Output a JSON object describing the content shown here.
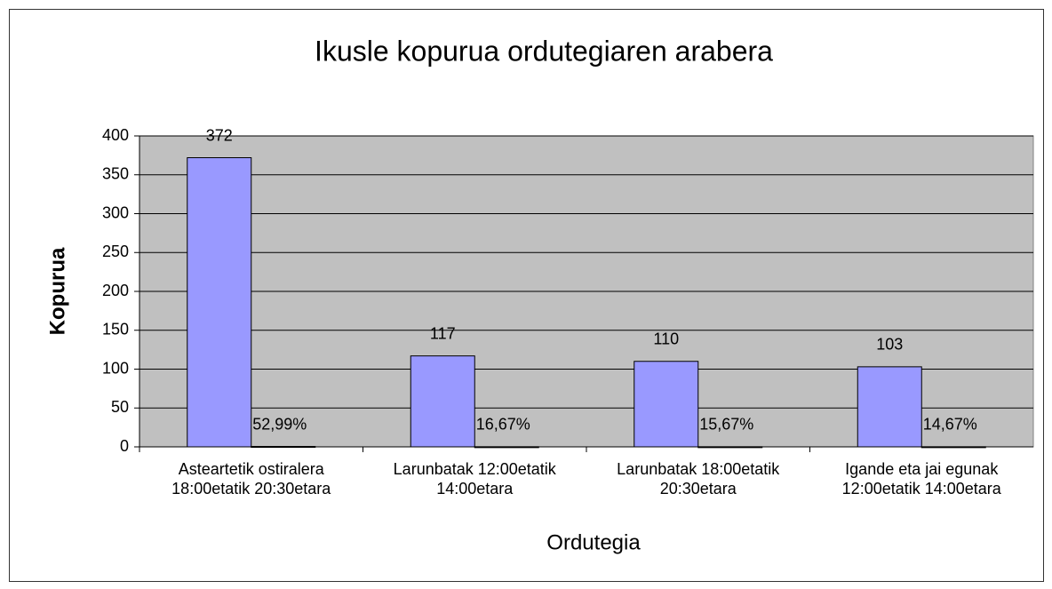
{
  "chart_data": {
    "type": "bar",
    "title": "Ikusle kopurua ordutegiaren arabera",
    "x_label": "Ordutegia",
    "y_label": "Kopurua",
    "categories": [
      "Asteartetik ostiralera\n18:00etatik 20:30etara",
      "Larunbatak 12:00etatik\n14:00etara",
      "Larunbatak 18:00etatik\n20:30etara",
      "Igande eta jai egunak\n12:00etatik 14:00etara"
    ],
    "series": [
      {
        "color": "#9999ff",
        "values": [
          372,
          117,
          110,
          103
        ]
      },
      {
        "color": "#993366",
        "values": [
          0.5299,
          0.1667,
          0.1567,
          0.1467
        ],
        "value_labels": [
          "52,99%",
          "16,67%",
          "15,67%",
          "14,67%"
        ]
      }
    ],
    "ylim": [
      0,
      400
    ],
    "yticks": [
      0,
      50,
      100,
      150,
      200,
      250,
      300,
      350,
      400
    ],
    "grid": true,
    "plot_background": "#c0c0c0"
  }
}
